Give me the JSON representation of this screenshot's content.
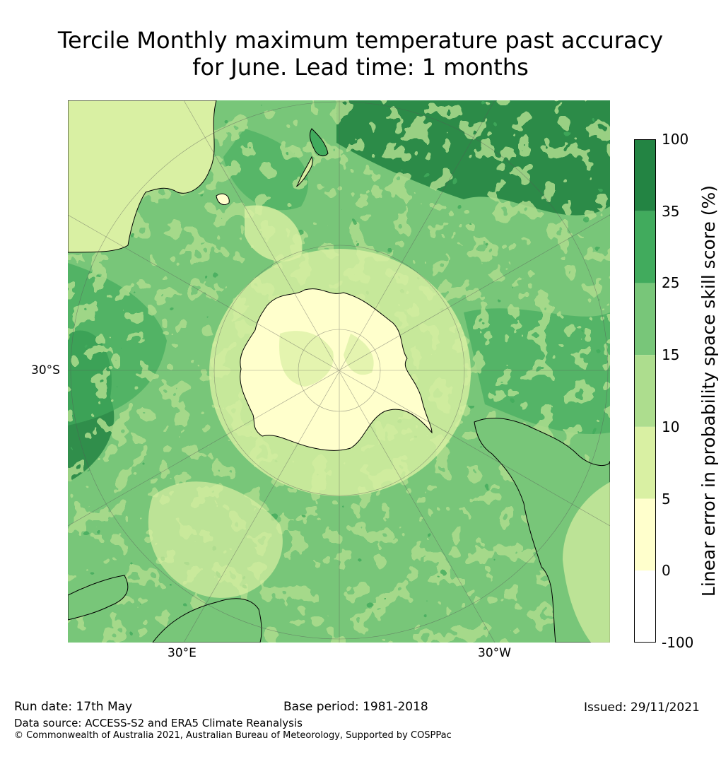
{
  "title": {
    "line1": "Tercile Monthly maximum temperature past accuracy",
    "line2": "for June. Lead time: 1 months"
  },
  "map": {
    "projection": "south-polar-stereographic",
    "lat_label": "30°S",
    "lon_labels": [
      "30°E",
      "30°W"
    ]
  },
  "colorbar": {
    "title": "Linear error in probability space skill score (%)",
    "ticks": [
      "100",
      "35",
      "25",
      "15",
      "10",
      "5",
      "0",
      "-100"
    ],
    "bins": [
      {
        "range": "35 to 100",
        "color": "#238443"
      },
      {
        "range": "25 to 35",
        "color": "#41ab5d"
      },
      {
        "range": "15 to 25",
        "color": "#78c679"
      },
      {
        "range": "10 to 15",
        "color": "#addd8e"
      },
      {
        "range": "5 to 10",
        "color": "#d9f0a3"
      },
      {
        "range": "0 to 5",
        "color": "#ffffcc"
      },
      {
        "range": "-100 to 0",
        "color": "#ffffff"
      }
    ]
  },
  "footer": {
    "run_date": "Run date: 17th May",
    "base_period": "Base period: 1981-2018",
    "issued": "Issued: 29/11/2021",
    "data_source": "Data source: ACCESS-S2 and ERA5 Climate Reanalysis",
    "copyright": "© Commonwealth of Australia 2021, Australian Bureau of Meteorology, Supported by COSPPac"
  }
}
